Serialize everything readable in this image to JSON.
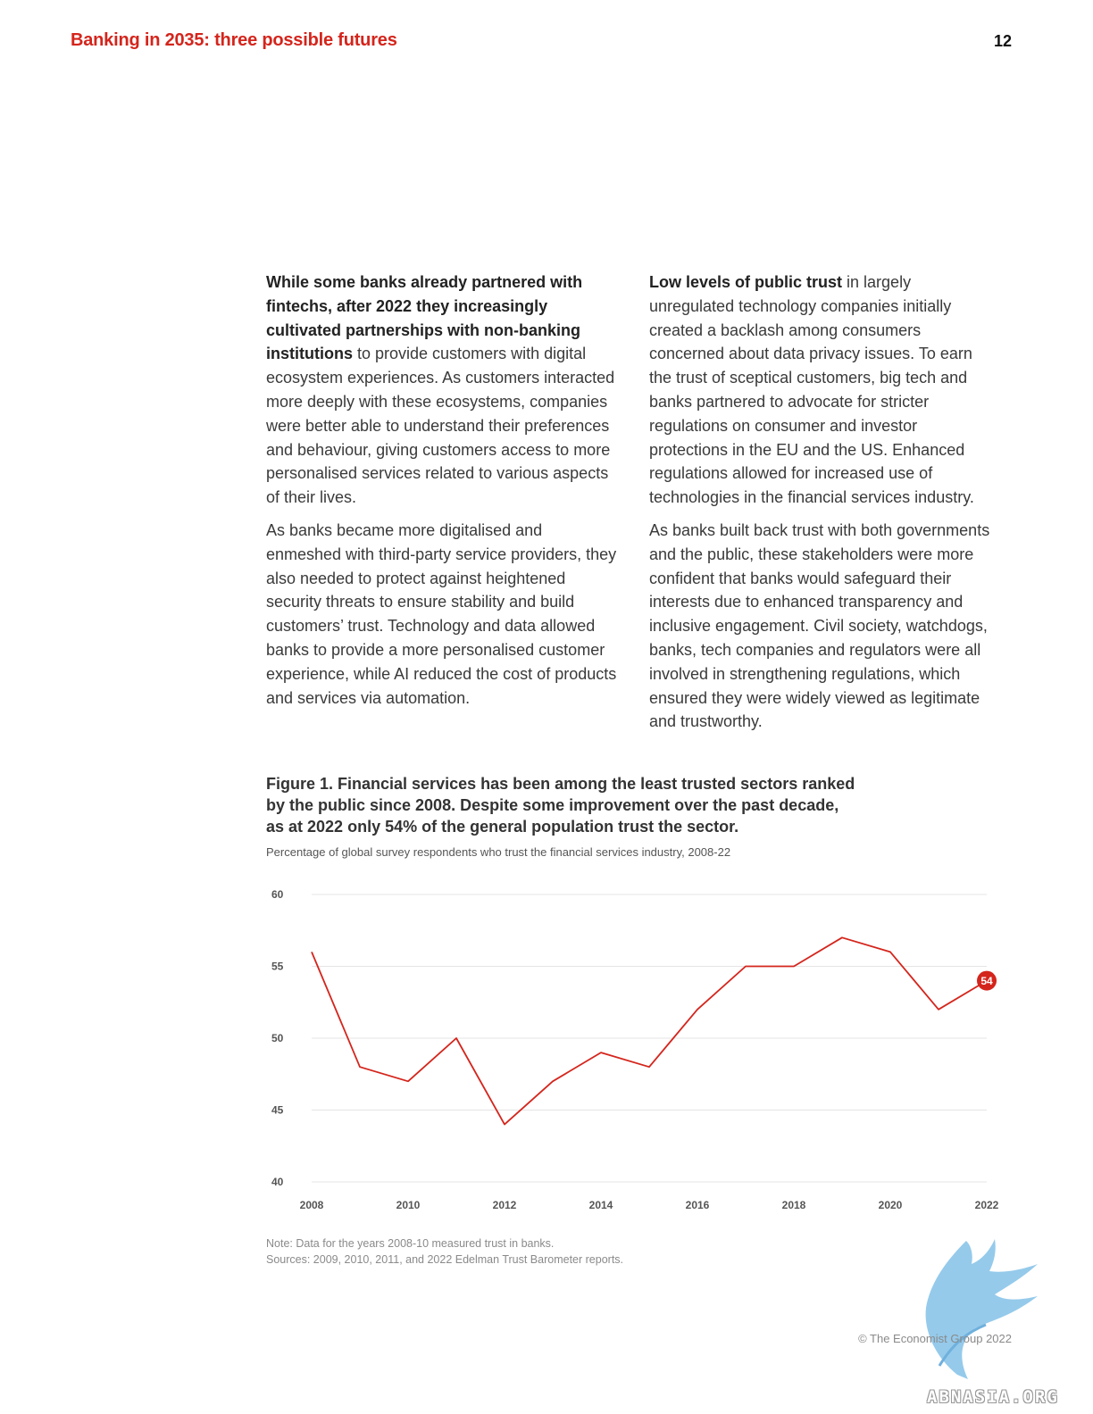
{
  "header": {
    "title": "Banking in 2035: three possible futures",
    "page_number": "12"
  },
  "body": {
    "left_p1_bold": "While some banks already partnered with fintechs, after 2022 they increasingly cultivated partnerships with non-banking institutions",
    "left_p1_rest": " to provide customers with digital ecosystem experiences. As customers interacted more deeply with these ecosystems, companies were better able to understand their preferences and behaviour, giving customers access to more personalised services related to various aspects of their lives.",
    "left_p2": "As banks became more digitalised and enmeshed with third-party service providers, they also needed to protect against heightened security threats to ensure stability and build customers’ trust. Technology and data allowed banks to provide a more personalised customer experience, while AI reduced the cost of products and services via automation.",
    "right_p1_bold": "Low levels of public trust",
    "right_p1_rest": " in largely unregulated technology companies initially created a backlash among consumers concerned about data privacy issues. To earn the trust of sceptical customers, big tech and banks partnered to advocate for stricter regulations on consumer and investor protections in the EU and the US. Enhanced regulations allowed for increased use of technologies in the financial services industry.",
    "right_p2": "As banks built back trust with both governments and the public, these stakeholders were more confident that banks would safeguard their interests due to enhanced transparency and inclusive engagement. Civil society, watchdogs, banks, tech companies and regulators were all involved in strengthening regulations, which ensured they were widely viewed as legitimate and trustworthy."
  },
  "figure": {
    "title": "Figure 1. Financial services has been among the least trusted sectors ranked by the public since 2008. Despite some improvement over the past decade, as at 2022 only 54% of the general population trust the sector.",
    "subtitle": "Percentage of global survey respondents who trust the financial services industry, 2008-22",
    "note": "Note: Data for the years 2008-10 measured trust in banks.",
    "sources": "Sources: 2009, 2010, 2011, and 2022 Edelman Trust Barometer reports."
  },
  "chart_data": {
    "type": "line",
    "title": "",
    "xlabel": "",
    "ylabel": "",
    "ylim": [
      40,
      60
    ],
    "xlim": [
      2008,
      2022
    ],
    "yticks": [
      "60",
      "55",
      "50",
      "45",
      "40"
    ],
    "xticks": [
      "2008",
      "2010",
      "2012",
      "2014",
      "2016",
      "2018",
      "2020",
      "2022"
    ],
    "grid": true,
    "line_color": "#d4251c",
    "series": [
      {
        "x": [
          2008,
          2009,
          2010,
          2011,
          2012,
          2013,
          2014,
          2015,
          2015.5,
          2016,
          2017,
          2018,
          2019,
          2020,
          2021,
          2022
        ],
        "values": [
          56,
          48,
          47,
          50,
          44,
          47,
          49,
          48,
          50,
          52,
          55,
          55,
          57,
          56,
          52,
          54
        ]
      }
    ],
    "end_label": "54"
  },
  "footer": {
    "copyright": "© The Economist Group 2022",
    "watermark": "ABNASIA.ORG"
  }
}
